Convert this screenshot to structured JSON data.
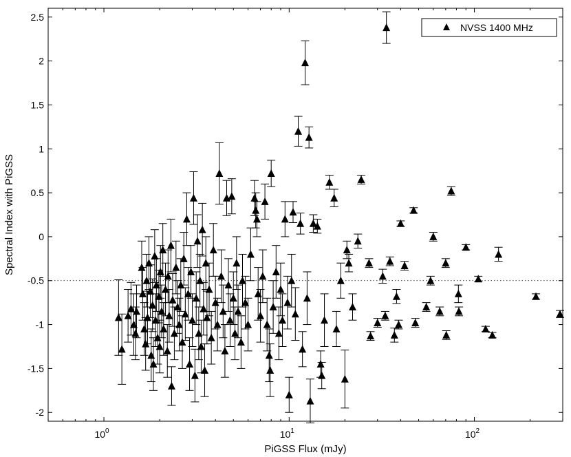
{
  "chart_data": {
    "type": "scatter",
    "title": "",
    "xlabel": "PiGSS Flux (mJy)",
    "ylabel": "Spectral Index with PiGSS",
    "x_scale": "log",
    "xlim": [
      0.5,
      300
    ],
    "ylim": [
      -2.1,
      2.6
    ],
    "x_major_ticks": [
      {
        "value": 1,
        "base": "10",
        "exp": "0"
      },
      {
        "value": 10,
        "base": "10",
        "exp": "1"
      },
      {
        "value": 100,
        "base": "10",
        "exp": "2"
      }
    ],
    "y_ticks": [
      {
        "value": 2.5,
        "label": "2.5"
      },
      {
        "value": 2,
        "label": "2"
      },
      {
        "value": 1.5,
        "label": "1.5"
      },
      {
        "value": 1,
        "label": "1"
      },
      {
        "value": 0.5,
        "label": "0.5"
      },
      {
        "value": 0,
        "label": "0"
      },
      {
        "value": -0.5,
        "label": "-0.5"
      },
      {
        "value": -1,
        "label": "-1"
      },
      {
        "value": -1.5,
        "label": "-1.5"
      },
      {
        "value": -2,
        "label": "-2"
      }
    ],
    "reference_line": {
      "y": -0.5,
      "style": "dotted"
    },
    "legend": {
      "label": "NVSS 1400 MHz",
      "position": "top-right"
    },
    "series": [
      {
        "name": "NVSS 1400 MHz",
        "marker": "triangle",
        "color": "#000000",
        "points": [
          [
            1.2,
            -0.92,
            0.43
          ],
          [
            1.25,
            -1.28,
            0.4
          ],
          [
            1.35,
            -0.9,
            0.3
          ],
          [
            1.4,
            -0.82,
            0.3
          ],
          [
            1.45,
            -1.0,
            0.35
          ],
          [
            1.48,
            -1.1,
            0.3
          ],
          [
            1.5,
            -0.85,
            0.3
          ],
          [
            1.6,
            -0.35,
            0.3
          ],
          [
            1.62,
            -0.65,
            0.3
          ],
          [
            1.65,
            -1.05,
            0.3
          ],
          [
            1.68,
            -1.22,
            0.3
          ],
          [
            1.7,
            -0.5,
            0.3
          ],
          [
            1.72,
            -0.92,
            0.3
          ],
          [
            1.75,
            -0.3,
            0.3
          ],
          [
            1.78,
            -0.62,
            0.3
          ],
          [
            1.8,
            -1.35,
            0.3
          ],
          [
            1.83,
            -0.78,
            0.3
          ],
          [
            1.85,
            -1.45,
            0.3
          ],
          [
            1.88,
            -0.22,
            0.3
          ],
          [
            1.9,
            -0.95,
            0.3
          ],
          [
            1.92,
            -0.55,
            0.3
          ],
          [
            1.95,
            -1.15,
            0.3
          ],
          [
            1.98,
            -0.68,
            0.3
          ],
          [
            2.0,
            -1.25,
            0.3
          ],
          [
            2.02,
            -0.4,
            0.3
          ],
          [
            2.05,
            -0.85,
            0.3
          ],
          [
            2.08,
            -0.15,
            0.3
          ],
          [
            2.1,
            -1.05,
            0.3
          ],
          [
            2.15,
            -0.6,
            0.3
          ],
          [
            2.2,
            -1.3,
            0.3
          ],
          [
            2.22,
            -0.45,
            0.3
          ],
          [
            2.25,
            -0.9,
            0.3
          ],
          [
            2.3,
            -0.1,
            0.3
          ],
          [
            2.32,
            -1.7,
            0.22
          ],
          [
            2.35,
            -0.72,
            0.3
          ],
          [
            2.4,
            -1.1,
            0.3
          ],
          [
            2.45,
            -0.35,
            0.3
          ],
          [
            2.5,
            -0.8,
            0.3
          ],
          [
            2.55,
            -1.0,
            0.3
          ],
          [
            2.6,
            -0.55,
            0.3
          ],
          [
            2.65,
            -1.2,
            0.3
          ],
          [
            2.7,
            -0.25,
            0.3
          ],
          [
            2.75,
            -0.88,
            0.3
          ],
          [
            2.8,
            0.2,
            0.3
          ],
          [
            2.85,
            -0.65,
            0.3
          ],
          [
            2.9,
            -1.45,
            0.3
          ],
          [
            2.95,
            -0.4,
            0.3
          ],
          [
            3.0,
            -0.95,
            0.3
          ],
          [
            3.05,
            0.44,
            0.3
          ],
          [
            3.1,
            -1.58,
            0.3
          ],
          [
            3.15,
            -0.7,
            0.3
          ],
          [
            3.2,
            -0.05,
            0.3
          ],
          [
            3.25,
            -1.1,
            0.3
          ],
          [
            3.3,
            -0.5,
            0.3
          ],
          [
            3.35,
            -1.25,
            0.3
          ],
          [
            3.4,
            0.08,
            0.3
          ],
          [
            3.45,
            -0.82,
            0.3
          ],
          [
            3.5,
            -1.52,
            0.3
          ],
          [
            3.55,
            -0.3,
            0.3
          ],
          [
            3.6,
            -0.92,
            0.3
          ],
          [
            3.7,
            -0.6,
            0.3
          ],
          [
            3.8,
            -1.15,
            0.3
          ],
          [
            3.9,
            -0.15,
            0.3
          ],
          [
            4.0,
            -0.75,
            0.3
          ],
          [
            4.1,
            -1.0,
            0.3
          ],
          [
            4.2,
            0.72,
            0.35
          ],
          [
            4.3,
            -0.45,
            0.3
          ],
          [
            4.4,
            -0.85,
            0.3
          ],
          [
            4.5,
            -1.3,
            0.3
          ],
          [
            4.6,
            0.44,
            0.2
          ],
          [
            4.7,
            -0.55,
            0.3
          ],
          [
            4.8,
            -0.95,
            0.3
          ],
          [
            4.9,
            0.46,
            0.2
          ],
          [
            5.0,
            -0.7,
            0.3
          ],
          [
            5.1,
            -1.1,
            0.3
          ],
          [
            5.2,
            -0.3,
            0.3
          ],
          [
            5.3,
            -0.85,
            0.3
          ],
          [
            5.5,
            -1.2,
            0.3
          ],
          [
            5.6,
            -0.5,
            0.3
          ],
          [
            5.8,
            -0.75,
            0.3
          ],
          [
            6.0,
            -1.0,
            0.3
          ],
          [
            6.2,
            -0.2,
            0.3
          ],
          [
            6.5,
            0.44,
            0.2
          ],
          [
            6.6,
            0.3,
            0.2
          ],
          [
            6.7,
            0.2,
            0.2
          ],
          [
            6.8,
            -0.65,
            0.3
          ],
          [
            7.0,
            -0.9,
            0.3
          ],
          [
            7.2,
            -0.45,
            0.3
          ],
          [
            7.4,
            0.4,
            0.2
          ],
          [
            7.6,
            -1.0,
            0.3
          ],
          [
            7.8,
            -1.35,
            0.3
          ],
          [
            7.9,
            -1.52,
            0.3
          ],
          [
            8.0,
            0.72,
            0.15
          ],
          [
            8.2,
            -0.8,
            0.3
          ],
          [
            8.5,
            -0.4,
            0.3
          ],
          [
            8.8,
            -1.1,
            0.3
          ],
          [
            9.0,
            -0.6,
            0.3
          ],
          [
            9.2,
            -0.95,
            0.3
          ],
          [
            9.5,
            0.2,
            0.2
          ],
          [
            9.8,
            -0.75,
            0.3
          ],
          [
            10.0,
            -1.8,
            0.2
          ],
          [
            10.3,
            -0.5,
            0.3
          ],
          [
            10.5,
            0.28,
            0.12
          ],
          [
            10.8,
            -0.88,
            0.3
          ],
          [
            11.2,
            1.2,
            0.17
          ],
          [
            11.5,
            0.15,
            0.12
          ],
          [
            11.8,
            -1.28,
            0.2
          ],
          [
            12.2,
            1.98,
            0.25
          ],
          [
            12.5,
            -0.7,
            0.3
          ],
          [
            12.8,
            1.13,
            0.12
          ],
          [
            13.0,
            -1.87,
            0.25
          ],
          [
            13.5,
            0.15,
            0.1
          ],
          [
            14.2,
            0.12,
            0.08
          ],
          [
            14.8,
            -1.45,
            0.15
          ],
          [
            15.0,
            -1.58,
            0.15
          ],
          [
            15.5,
            -0.95,
            0.3
          ],
          [
            16.5,
            0.62,
            0.08
          ],
          [
            17.5,
            0.44,
            0.1
          ],
          [
            18.0,
            -1.05,
            0.2
          ],
          [
            19.0,
            -0.5,
            0.2
          ],
          [
            20.0,
            -1.62,
            0.33
          ],
          [
            20.5,
            -0.15,
            0.1
          ],
          [
            21.0,
            -0.3,
            0.1
          ],
          [
            22.0,
            -0.8,
            0.15
          ],
          [
            23.5,
            -0.05,
            0.08
          ],
          [
            24.5,
            0.65,
            0.05
          ],
          [
            27.0,
            -0.3,
            0.05
          ],
          [
            27.5,
            -1.13,
            0.05
          ],
          [
            30.0,
            -0.98,
            0.05
          ],
          [
            32.0,
            -0.45,
            0.08
          ],
          [
            33.0,
            -0.9,
            0.05
          ],
          [
            33.5,
            2.38,
            0.18
          ],
          [
            35.0,
            -0.28,
            0.05
          ],
          [
            37.0,
            -1.12,
            0.08
          ],
          [
            38.0,
            -0.68,
            0.08
          ],
          [
            39.0,
            -1.0,
            0.05
          ],
          [
            40.0,
            0.15,
            0.03
          ],
          [
            42.0,
            -0.33,
            0.05
          ],
          [
            47.0,
            0.3,
            0.03
          ],
          [
            48.0,
            -0.98,
            0.05
          ],
          [
            55.0,
            -0.8,
            0.05
          ],
          [
            58.0,
            -0.5,
            0.05
          ],
          [
            60.0,
            0.0,
            0.05
          ],
          [
            65.0,
            -0.85,
            0.05
          ],
          [
            70.0,
            -0.3,
            0.05
          ],
          [
            70.5,
            -1.12,
            0.05
          ],
          [
            75.0,
            0.52,
            0.05
          ],
          [
            82.0,
            -0.65,
            0.1
          ],
          [
            82.5,
            -0.85,
            0.05
          ],
          [
            90.0,
            -0.12,
            0.03
          ],
          [
            105.0,
            -0.48,
            0.03
          ],
          [
            115.0,
            -1.05,
            0.03
          ],
          [
            125.0,
            -1.12,
            0.03
          ],
          [
            135.0,
            -0.2,
            0.08
          ],
          [
            215.0,
            -0.68,
            0.03
          ],
          [
            290.0,
            -0.88,
            0.04
          ]
        ]
      }
    ]
  }
}
